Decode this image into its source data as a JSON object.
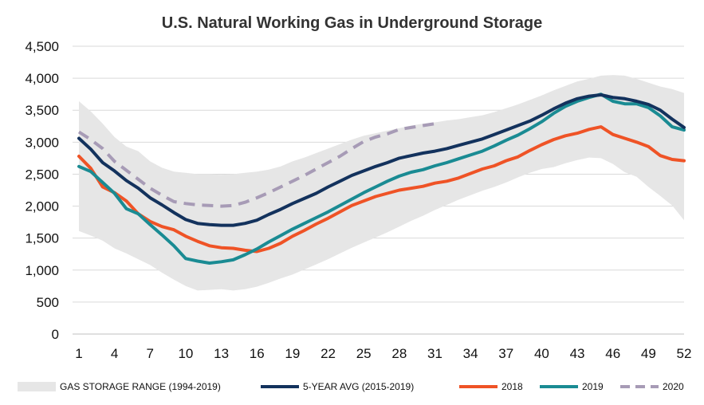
{
  "chart_data": {
    "type": "line",
    "title": "U.S. Natural Working Gas in Underground Storage",
    "xlabel": "",
    "ylabel": "",
    "xlim": [
      1,
      52
    ],
    "ylim": [
      0,
      4500
    ],
    "x_ticks": [
      1,
      4,
      7,
      10,
      13,
      16,
      19,
      22,
      25,
      28,
      31,
      34,
      37,
      40,
      43,
      46,
      49,
      52
    ],
    "y_ticks": [
      0,
      500,
      1000,
      1500,
      2000,
      2500,
      3000,
      3500,
      4000,
      4500
    ],
    "y_tick_labels": [
      "0",
      "500",
      "1,000",
      "1,500",
      "2,000",
      "2,500",
      "3,000",
      "3,500",
      "4,000",
      "4,500"
    ],
    "grid": "horizontal",
    "legend_position": "bottom",
    "range": {
      "name": "GAS STORAGE RANGE (1994-2019)",
      "color": "#e6e6e6",
      "x": [
        1,
        2,
        3,
        4,
        5,
        6,
        7,
        8,
        9,
        10,
        11,
        12,
        13,
        14,
        15,
        16,
        17,
        18,
        19,
        20,
        21,
        22,
        23,
        24,
        25,
        26,
        27,
        28,
        29,
        30,
        31,
        32,
        33,
        34,
        35,
        36,
        37,
        38,
        39,
        40,
        41,
        42,
        43,
        44,
        45,
        46,
        47,
        48,
        49,
        50,
        51,
        52
      ],
      "upper": [
        3640,
        3480,
        3290,
        3080,
        2930,
        2860,
        2700,
        2600,
        2540,
        2520,
        2500,
        2500,
        2490,
        2500,
        2520,
        2540,
        2570,
        2620,
        2700,
        2760,
        2830,
        2900,
        2970,
        3040,
        3100,
        3140,
        3180,
        3220,
        3260,
        3290,
        3310,
        3340,
        3360,
        3390,
        3420,
        3470,
        3530,
        3590,
        3660,
        3730,
        3810,
        3880,
        3950,
        3990,
        4040,
        4050,
        4040,
        3990,
        3930,
        3870,
        3830,
        3770
      ],
      "lower": [
        1610,
        1540,
        1460,
        1340,
        1260,
        1170,
        1080,
        960,
        850,
        750,
        680,
        690,
        700,
        680,
        700,
        740,
        800,
        870,
        930,
        1010,
        1090,
        1170,
        1260,
        1350,
        1430,
        1510,
        1590,
        1680,
        1770,
        1850,
        1940,
        2020,
        2100,
        2170,
        2240,
        2300,
        2370,
        2450,
        2520,
        2580,
        2610,
        2670,
        2720,
        2760,
        2750,
        2660,
        2530,
        2460,
        2300,
        2160,
        2010,
        1780
      ]
    },
    "series": [
      {
        "name": "5-YEAR AVG (2015-2019)",
        "color": "#13325d",
        "dash": "solid",
        "x": [
          1,
          2,
          3,
          4,
          5,
          6,
          7,
          8,
          9,
          10,
          11,
          12,
          13,
          14,
          15,
          16,
          17,
          18,
          19,
          20,
          21,
          22,
          23,
          24,
          25,
          26,
          27,
          28,
          29,
          30,
          31,
          32,
          33,
          34,
          35,
          36,
          37,
          38,
          39,
          40,
          41,
          42,
          43,
          44,
          45,
          46,
          47,
          48,
          49,
          50,
          51,
          52
        ],
        "values": [
          3060,
          2890,
          2680,
          2550,
          2400,
          2280,
          2130,
          2020,
          1900,
          1790,
          1730,
          1710,
          1700,
          1700,
          1730,
          1780,
          1870,
          1950,
          2040,
          2120,
          2200,
          2300,
          2390,
          2480,
          2550,
          2620,
          2680,
          2750,
          2790,
          2830,
          2860,
          2900,
          2950,
          3000,
          3050,
          3120,
          3190,
          3260,
          3330,
          3420,
          3520,
          3610,
          3680,
          3720,
          3740,
          3700,
          3680,
          3640,
          3590,
          3500,
          3360,
          3230
        ]
      },
      {
        "name": "2018",
        "color": "#ef5326",
        "dash": "solid",
        "x": [
          1,
          2,
          3,
          4,
          5,
          6,
          7,
          8,
          9,
          10,
          11,
          12,
          13,
          14,
          15,
          16,
          17,
          18,
          19,
          20,
          21,
          22,
          23,
          24,
          25,
          26,
          27,
          28,
          29,
          30,
          31,
          32,
          33,
          34,
          35,
          36,
          37,
          38,
          39,
          40,
          41,
          42,
          43,
          44,
          45,
          46,
          47,
          48,
          49,
          50,
          51,
          52
        ],
        "values": [
          2780,
          2590,
          2300,
          2210,
          2080,
          1880,
          1760,
          1680,
          1630,
          1530,
          1450,
          1380,
          1350,
          1340,
          1310,
          1290,
          1340,
          1420,
          1530,
          1620,
          1720,
          1810,
          1910,
          2010,
          2080,
          2150,
          2200,
          2250,
          2280,
          2310,
          2360,
          2390,
          2440,
          2510,
          2580,
          2630,
          2710,
          2770,
          2870,
          2960,
          3040,
          3100,
          3140,
          3200,
          3240,
          3120,
          3060,
          3000,
          2930,
          2790,
          2730,
          2710
        ]
      },
      {
        "name": "2019",
        "color": "#1a8b93",
        "dash": "solid",
        "x": [
          1,
          2,
          3,
          4,
          5,
          6,
          7,
          8,
          9,
          10,
          11,
          12,
          13,
          14,
          15,
          16,
          17,
          18,
          19,
          20,
          21,
          22,
          23,
          24,
          25,
          26,
          27,
          28,
          29,
          30,
          31,
          32,
          33,
          34,
          35,
          36,
          37,
          38,
          39,
          40,
          41,
          42,
          43,
          44,
          45,
          46,
          47,
          48,
          49,
          50,
          51,
          52
        ],
        "values": [
          2620,
          2540,
          2370,
          2200,
          1960,
          1880,
          1710,
          1550,
          1380,
          1180,
          1140,
          1110,
          1130,
          1160,
          1240,
          1330,
          1440,
          1540,
          1640,
          1730,
          1820,
          1910,
          2010,
          2110,
          2210,
          2300,
          2390,
          2470,
          2530,
          2570,
          2630,
          2680,
          2740,
          2800,
          2860,
          2940,
          3030,
          3110,
          3210,
          3320,
          3450,
          3560,
          3640,
          3700,
          3750,
          3640,
          3600,
          3600,
          3540,
          3410,
          3240,
          3190
        ]
      },
      {
        "name": "2020",
        "color": "#a79bb6",
        "dash": "dashed",
        "x": [
          1,
          2,
          3,
          4,
          5,
          6,
          7,
          8,
          9,
          10,
          11,
          12,
          13,
          14,
          15,
          16,
          17,
          18,
          19,
          20,
          21,
          22,
          23,
          24,
          25,
          26,
          27,
          28,
          29,
          30,
          31
        ],
        "values": [
          3160,
          3040,
          2900,
          2700,
          2560,
          2420,
          2280,
          2170,
          2070,
          2040,
          2020,
          2010,
          2000,
          2010,
          2060,
          2130,
          2210,
          2300,
          2390,
          2480,
          2580,
          2680,
          2780,
          2900,
          3010,
          3080,
          3130,
          3200,
          3230,
          3260,
          3290
        ]
      }
    ]
  }
}
